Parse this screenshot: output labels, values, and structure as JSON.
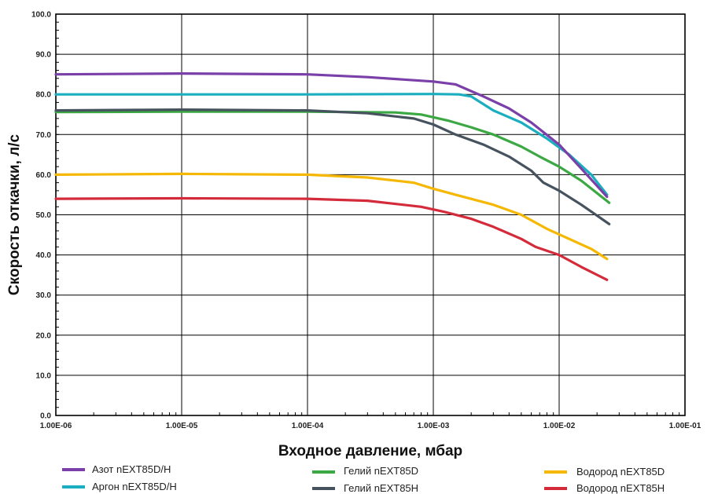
{
  "chart_data": {
    "type": "line",
    "xlabel": "Входное давление, мбар",
    "ylabel": "Скорость откачки, л/с",
    "x_scale": "log",
    "xlim": [
      1e-06,
      0.1
    ],
    "ylim": [
      0,
      100
    ],
    "x_tick_labels": [
      "1.00E-06",
      "1.00E-05",
      "1.00E-04",
      "1.00E-03",
      "1.00E-02",
      "1.00E-01"
    ],
    "y_tick_labels": [
      "0.0",
      "10.0",
      "20.0",
      "30.0",
      "40.0",
      "50.0",
      "60.0",
      "70.0",
      "80.0",
      "90.0",
      "100.0"
    ],
    "grid": true,
    "legend_position": "bottom",
    "series": [
      {
        "name": "Азот nEXT85D/H",
        "color": "#7a3fa8",
        "points": [
          [
            1e-06,
            85
          ],
          [
            1e-05,
            85.2
          ],
          [
            0.0001,
            85
          ],
          [
            0.0003,
            84.3
          ],
          [
            0.001,
            83.2
          ],
          [
            0.0015,
            82.5
          ],
          [
            0.0025,
            79.5
          ],
          [
            0.004,
            76.5
          ],
          [
            0.006,
            73
          ],
          [
            0.01,
            67.5
          ],
          [
            0.015,
            61.5
          ],
          [
            0.024,
            54.5
          ]
        ]
      },
      {
        "name": "Аргон nEXT85D/H",
        "color": "#1aaec0",
        "points": [
          [
            1e-06,
            80
          ],
          [
            1e-05,
            80
          ],
          [
            0.0001,
            80
          ],
          [
            0.001,
            80.1
          ],
          [
            0.0016,
            80
          ],
          [
            0.002,
            79.5
          ],
          [
            0.003,
            76
          ],
          [
            0.005,
            73
          ],
          [
            0.008,
            69
          ],
          [
            0.012,
            65
          ],
          [
            0.018,
            60
          ],
          [
            0.024,
            55
          ]
        ]
      },
      {
        "name": "Гелий nEXT85D",
        "color": "#3ba844",
        "points": [
          [
            1e-06,
            75.6
          ],
          [
            1e-05,
            75.7
          ],
          [
            0.0001,
            75.7
          ],
          [
            0.0005,
            75.5
          ],
          [
            0.0008,
            75
          ],
          [
            0.0013,
            73.5
          ],
          [
            0.002,
            71.8
          ],
          [
            0.003,
            70
          ],
          [
            0.005,
            67
          ],
          [
            0.007,
            64.5
          ],
          [
            0.01,
            62
          ],
          [
            0.015,
            58.5
          ],
          [
            0.025,
            53
          ]
        ]
      },
      {
        "name": "Гелий nEXT85H",
        "color": "#46535e",
        "points": [
          [
            1e-06,
            76
          ],
          [
            1e-05,
            76.2
          ],
          [
            0.0001,
            76
          ],
          [
            0.0003,
            75.3
          ],
          [
            0.0007,
            74
          ],
          [
            0.001,
            72.5
          ],
          [
            0.0015,
            70
          ],
          [
            0.0025,
            67.5
          ],
          [
            0.004,
            64.5
          ],
          [
            0.006,
            61
          ],
          [
            0.0075,
            58
          ],
          [
            0.01,
            56
          ],
          [
            0.015,
            52.5
          ],
          [
            0.025,
            47.7
          ]
        ]
      },
      {
        "name": "Водород nEXT85D",
        "color": "#f5b700",
        "points": [
          [
            1e-06,
            60
          ],
          [
            1e-05,
            60.2
          ],
          [
            0.0001,
            60
          ],
          [
            0.0003,
            59.3
          ],
          [
            0.0007,
            58
          ],
          [
            0.001,
            56.5
          ],
          [
            0.0015,
            55
          ],
          [
            0.003,
            52.5
          ],
          [
            0.005,
            50
          ],
          [
            0.008,
            46.5
          ],
          [
            0.012,
            44
          ],
          [
            0.018,
            41.5
          ],
          [
            0.024,
            39
          ]
        ]
      },
      {
        "name": "Водород nEXT85H",
        "color": "#d42b3a",
        "points": [
          [
            1e-06,
            54
          ],
          [
            1e-05,
            54.1
          ],
          [
            0.0001,
            54
          ],
          [
            0.0003,
            53.5
          ],
          [
            0.0008,
            52
          ],
          [
            0.0012,
            50.8
          ],
          [
            0.002,
            49
          ],
          [
            0.003,
            47
          ],
          [
            0.005,
            44
          ],
          [
            0.0065,
            42
          ],
          [
            0.01,
            40
          ],
          [
            0.015,
            37
          ],
          [
            0.024,
            33.8
          ]
        ]
      }
    ]
  }
}
